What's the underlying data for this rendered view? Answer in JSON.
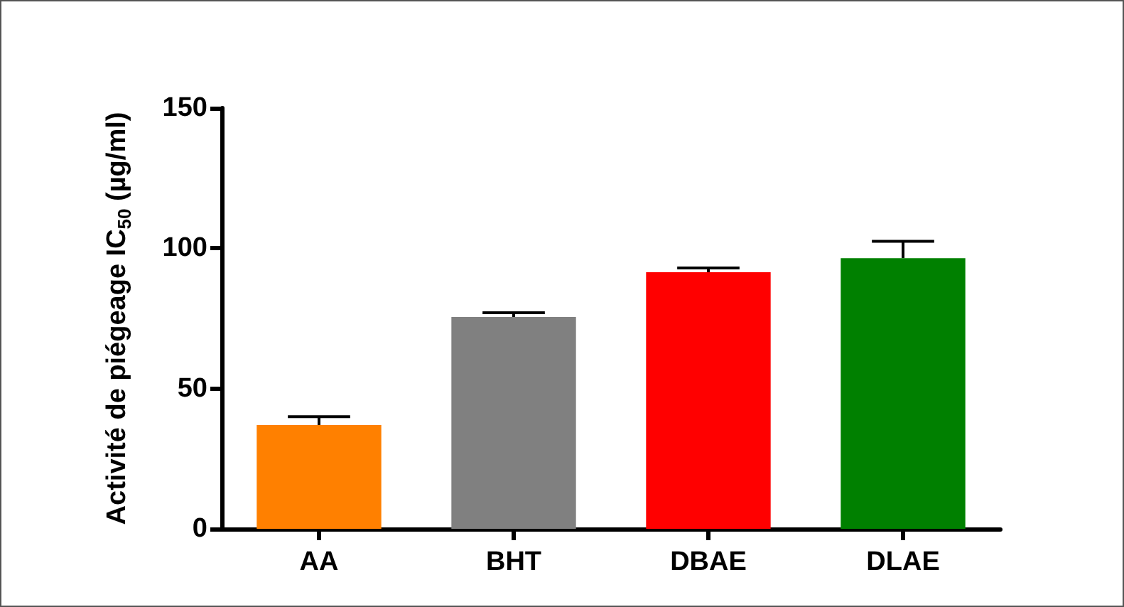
{
  "chart_data": {
    "type": "bar",
    "ylabel": "Activité de piégeage IC$_{50}$ (µg/ml)",
    "categories": [
      "AA",
      "BHT",
      "DBAE",
      "DLAE"
    ],
    "values": [
      37,
      75.5,
      91.5,
      96.5
    ],
    "colors": [
      "#ff8000",
      "#808080",
      "#ff0000",
      "#008000"
    ],
    "errors": [
      [
        37,
        40
      ],
      [
        75.5,
        77
      ],
      [
        91.5,
        93
      ],
      [
        96.5,
        102.5
      ]
    ],
    "ylim": [
      0,
      150
    ],
    "yticks": [
      0,
      50,
      100,
      150
    ],
    "grid": false
  }
}
